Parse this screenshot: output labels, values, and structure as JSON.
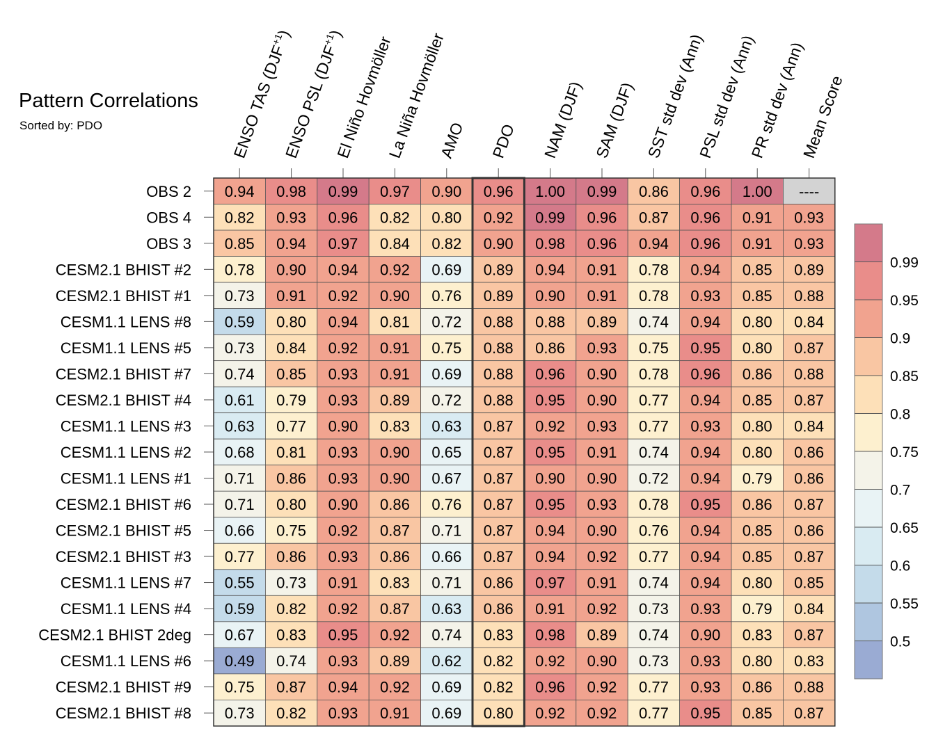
{
  "chart_data": {
    "type": "heatmap",
    "title": "Pattern Correlations",
    "subtitle": "Sorted by: PDO",
    "columns": [
      {
        "text": "ENSO TAS (DJF",
        "sup": "+1",
        "tail": ")"
      },
      {
        "text": "ENSO PSL (DJF",
        "sup": "+1",
        "tail": ")"
      },
      {
        "text": "El Niño Hovmöller"
      },
      {
        "text": "La Niña Hovmöller"
      },
      {
        "text": "AMO"
      },
      {
        "text": "PDO"
      },
      {
        "text": "NAM (DJF)"
      },
      {
        "text": "SAM (DJF)"
      },
      {
        "text": "SST std dev (Ann)"
      },
      {
        "text": "PSL std dev (Ann)"
      },
      {
        "text": "PR std dev (Ann)"
      },
      {
        "text": "Mean Score"
      }
    ],
    "highlighted_column": "PDO",
    "rows": [
      "OBS 2",
      "OBS 4",
      "OBS 3",
      "CESM2.1 BHIST #2",
      "CESM2.1 BHIST #1",
      "CESM1.1 LENS #8",
      "CESM1.1 LENS #5",
      "CESM2.1 BHIST #7",
      "CESM2.1 BHIST #4",
      "CESM1.1 LENS #3",
      "CESM1.1 LENS #2",
      "CESM1.1 LENS #1",
      "CESM2.1 BHIST #6",
      "CESM2.1 BHIST #5",
      "CESM2.1 BHIST #3",
      "CESM1.1 LENS #7",
      "CESM1.1 LENS #4",
      "CESM2.1 BHIST 2deg",
      "CESM1.1 LENS #6",
      "CESM2.1 BHIST #9",
      "CESM2.1 BHIST #8"
    ],
    "values": [
      [
        "0.94",
        "0.98",
        "0.99",
        "0.97",
        "0.90",
        "0.96",
        "1.00",
        "0.99",
        "0.86",
        "0.96",
        "1.00",
        "----"
      ],
      [
        "0.82",
        "0.93",
        "0.96",
        "0.82",
        "0.80",
        "0.92",
        "0.99",
        "0.96",
        "0.87",
        "0.96",
        "0.91",
        "0.93"
      ],
      [
        "0.85",
        "0.94",
        "0.97",
        "0.84",
        "0.82",
        "0.90",
        "0.98",
        "0.96",
        "0.94",
        "0.96",
        "0.91",
        "0.93"
      ],
      [
        "0.78",
        "0.90",
        "0.94",
        "0.92",
        "0.69",
        "0.89",
        "0.94",
        "0.91",
        "0.78",
        "0.94",
        "0.85",
        "0.89"
      ],
      [
        "0.73",
        "0.91",
        "0.92",
        "0.90",
        "0.76",
        "0.89",
        "0.90",
        "0.91",
        "0.78",
        "0.93",
        "0.85",
        "0.88"
      ],
      [
        "0.59",
        "0.80",
        "0.94",
        "0.81",
        "0.72",
        "0.88",
        "0.88",
        "0.89",
        "0.74",
        "0.94",
        "0.80",
        "0.84"
      ],
      [
        "0.73",
        "0.84",
        "0.92",
        "0.91",
        "0.75",
        "0.88",
        "0.86",
        "0.93",
        "0.75",
        "0.95",
        "0.80",
        "0.87"
      ],
      [
        "0.74",
        "0.85",
        "0.93",
        "0.91",
        "0.69",
        "0.88",
        "0.96",
        "0.90",
        "0.78",
        "0.96",
        "0.86",
        "0.88"
      ],
      [
        "0.61",
        "0.79",
        "0.93",
        "0.89",
        "0.72",
        "0.88",
        "0.95",
        "0.90",
        "0.77",
        "0.94",
        "0.85",
        "0.87"
      ],
      [
        "0.63",
        "0.77",
        "0.90",
        "0.83",
        "0.63",
        "0.87",
        "0.92",
        "0.93",
        "0.77",
        "0.93",
        "0.80",
        "0.84"
      ],
      [
        "0.68",
        "0.81",
        "0.93",
        "0.90",
        "0.65",
        "0.87",
        "0.95",
        "0.91",
        "0.74",
        "0.94",
        "0.80",
        "0.86"
      ],
      [
        "0.71",
        "0.86",
        "0.93",
        "0.90",
        "0.67",
        "0.87",
        "0.90",
        "0.90",
        "0.72",
        "0.94",
        "0.79",
        "0.86"
      ],
      [
        "0.71",
        "0.80",
        "0.90",
        "0.86",
        "0.76",
        "0.87",
        "0.95",
        "0.93",
        "0.78",
        "0.95",
        "0.86",
        "0.87"
      ],
      [
        "0.66",
        "0.75",
        "0.92",
        "0.87",
        "0.71",
        "0.87",
        "0.94",
        "0.90",
        "0.76",
        "0.94",
        "0.85",
        "0.86"
      ],
      [
        "0.77",
        "0.86",
        "0.93",
        "0.86",
        "0.66",
        "0.87",
        "0.94",
        "0.92",
        "0.77",
        "0.94",
        "0.85",
        "0.87"
      ],
      [
        "0.55",
        "0.73",
        "0.91",
        "0.83",
        "0.71",
        "0.86",
        "0.97",
        "0.91",
        "0.74",
        "0.94",
        "0.80",
        "0.85"
      ],
      [
        "0.59",
        "0.82",
        "0.92",
        "0.87",
        "0.63",
        "0.86",
        "0.91",
        "0.92",
        "0.73",
        "0.93",
        "0.79",
        "0.84"
      ],
      [
        "0.67",
        "0.83",
        "0.95",
        "0.92",
        "0.74",
        "0.83",
        "0.98",
        "0.89",
        "0.74",
        "0.90",
        "0.83",
        "0.87"
      ],
      [
        "0.49",
        "0.74",
        "0.93",
        "0.89",
        "0.62",
        "0.82",
        "0.92",
        "0.90",
        "0.73",
        "0.93",
        "0.80",
        "0.83"
      ],
      [
        "0.75",
        "0.87",
        "0.94",
        "0.92",
        "0.69",
        "0.82",
        "0.96",
        "0.92",
        "0.77",
        "0.93",
        "0.86",
        "0.88"
      ],
      [
        "0.73",
        "0.82",
        "0.93",
        "0.91",
        "0.69",
        "0.80",
        "0.92",
        "0.92",
        "0.77",
        "0.95",
        "0.85",
        "0.87"
      ]
    ],
    "missing_color": "#d3d3d3",
    "colorbar": {
      "ticks": [
        "0.99",
        "0.95",
        "0.9",
        "0.85",
        "0.8",
        "0.75",
        "0.7",
        "0.65",
        "0.6",
        "0.55",
        "0.5"
      ],
      "bin_edges": [
        0.5,
        0.55,
        0.6,
        0.65,
        0.7,
        0.75,
        0.8,
        0.85,
        0.9,
        0.95,
        0.99
      ],
      "colors": [
        "#9aabd3",
        "#afc6e0",
        "#c4dbea",
        "#d9ebf2",
        "#e9f3f5",
        "#f4f3e9",
        "#fdf0cf",
        "#fde0b8",
        "#f9c6a3",
        "#f1a38f",
        "#e98d8a",
        "#d47a8a"
      ]
    }
  }
}
